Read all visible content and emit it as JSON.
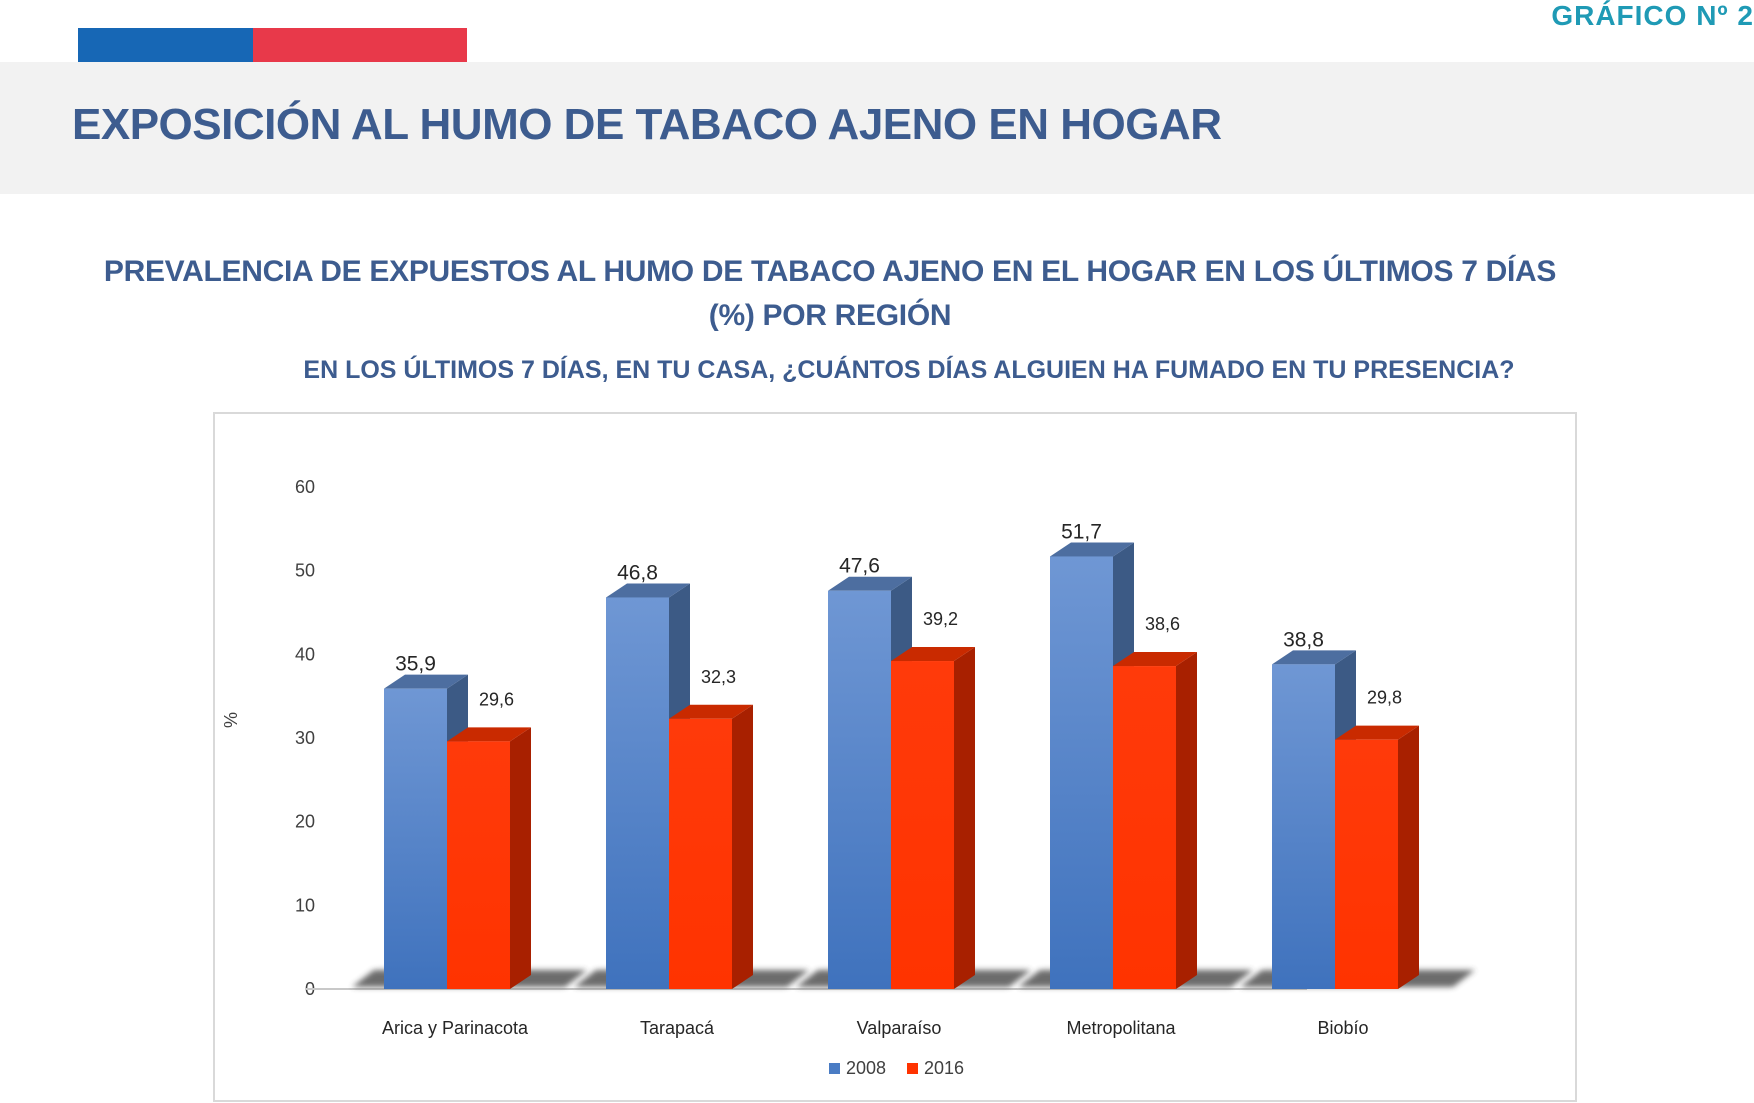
{
  "header": {
    "figure_label": "GRÁFICO Nº 2",
    "title": "EXPOSICIÓN AL HUMO DE TABACO AJENO EN HOGAR",
    "flag_colors": [
      "#1767b5",
      "#e8394a"
    ]
  },
  "chart_header": {
    "subtitle_line1": "PREVALENCIA DE EXPUESTOS AL HUMO DE TABACO AJENO EN EL HOGAR EN LOS ÚLTIMOS 7 DÍAS",
    "subtitle_line2": "(%) POR REGIÓN",
    "question": "EN LOS ÚLTIMOS 7 DÍAS, EN TU CASA, ¿CUÁNTOS DÍAS ALGUIEN HA FUMADO EN TU PRESENCIA?"
  },
  "chart_data": {
    "type": "bar",
    "style": "3d-clustered-column",
    "categories": [
      "Arica y Parinacota",
      "Tarapacá",
      "Valparaíso",
      "Metropolitana",
      "Biobío"
    ],
    "series": [
      {
        "name": "2008",
        "values": [
          35.9,
          46.8,
          47.6,
          51.7,
          38.8
        ],
        "labels": [
          "35,9",
          "46,8",
          "47,6",
          "51,7",
          "38,8"
        ],
        "color": "#4a7cc4"
      },
      {
        "name": "2016",
        "values": [
          29.6,
          32.3,
          39.2,
          38.6,
          29.8
        ],
        "labels": [
          "29,6",
          "32,3",
          "39,2",
          "38,6",
          "29,8"
        ],
        "color": "#ff3300"
      }
    ],
    "ylabel": "%",
    "ylim": [
      0,
      60
    ],
    "yticks": [
      "0",
      "10",
      "20",
      "30",
      "40",
      "50",
      "60"
    ],
    "grid": false,
    "legend_position": "bottom"
  }
}
